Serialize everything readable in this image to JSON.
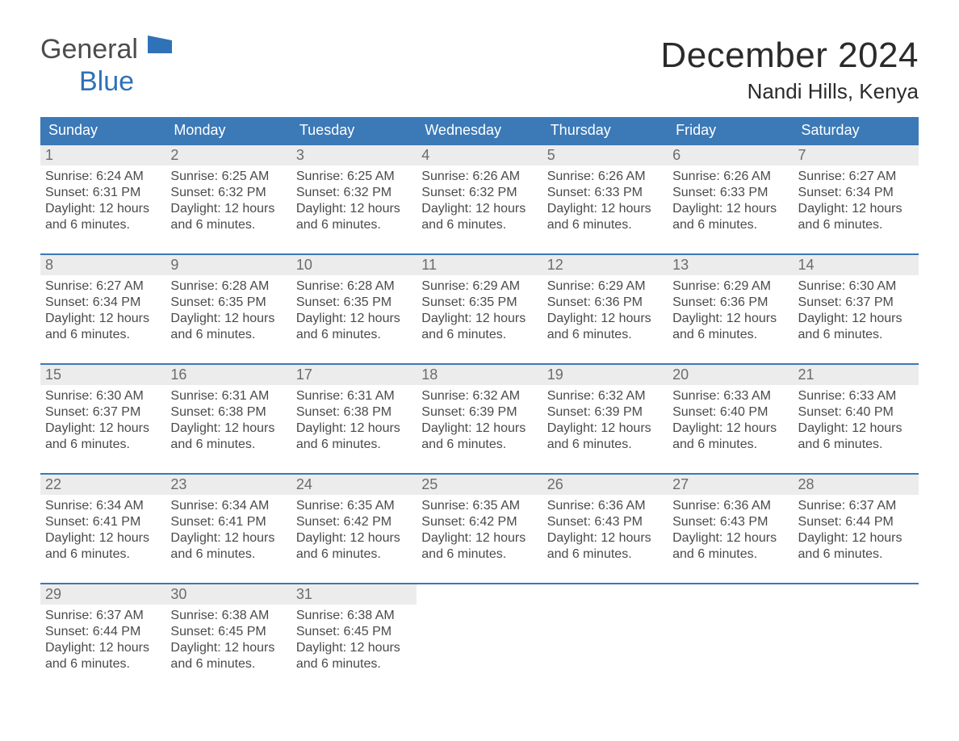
{
  "brand": {
    "word1": "General",
    "word2": "Blue"
  },
  "title": "December 2024",
  "location": "Nandi Hills, Kenya",
  "colors": {
    "header_bg": "#3b79b7",
    "header_text": "#ffffff",
    "daynum_bg": "#ececec",
    "daynum_text": "#6c6c6c",
    "body_text": "#4a4a4a",
    "rule": "#3b79b7",
    "logo_gray": "#4c4c4c",
    "logo_blue": "#2f72b8",
    "page_bg": "#ffffff"
  },
  "weekdays": [
    "Sunday",
    "Monday",
    "Tuesday",
    "Wednesday",
    "Thursday",
    "Friday",
    "Saturday"
  ],
  "weeks": [
    [
      {
        "n": "1",
        "sunrise": "Sunrise: 6:24 AM",
        "sunset": "Sunset: 6:31 PM",
        "d1": "Daylight: 12 hours",
        "d2": "and 6 minutes."
      },
      {
        "n": "2",
        "sunrise": "Sunrise: 6:25 AM",
        "sunset": "Sunset: 6:32 PM",
        "d1": "Daylight: 12 hours",
        "d2": "and 6 minutes."
      },
      {
        "n": "3",
        "sunrise": "Sunrise: 6:25 AM",
        "sunset": "Sunset: 6:32 PM",
        "d1": "Daylight: 12 hours",
        "d2": "and 6 minutes."
      },
      {
        "n": "4",
        "sunrise": "Sunrise: 6:26 AM",
        "sunset": "Sunset: 6:32 PM",
        "d1": "Daylight: 12 hours",
        "d2": "and 6 minutes."
      },
      {
        "n": "5",
        "sunrise": "Sunrise: 6:26 AM",
        "sunset": "Sunset: 6:33 PM",
        "d1": "Daylight: 12 hours",
        "d2": "and 6 minutes."
      },
      {
        "n": "6",
        "sunrise": "Sunrise: 6:26 AM",
        "sunset": "Sunset: 6:33 PM",
        "d1": "Daylight: 12 hours",
        "d2": "and 6 minutes."
      },
      {
        "n": "7",
        "sunrise": "Sunrise: 6:27 AM",
        "sunset": "Sunset: 6:34 PM",
        "d1": "Daylight: 12 hours",
        "d2": "and 6 minutes."
      }
    ],
    [
      {
        "n": "8",
        "sunrise": "Sunrise: 6:27 AM",
        "sunset": "Sunset: 6:34 PM",
        "d1": "Daylight: 12 hours",
        "d2": "and 6 minutes."
      },
      {
        "n": "9",
        "sunrise": "Sunrise: 6:28 AM",
        "sunset": "Sunset: 6:35 PM",
        "d1": "Daylight: 12 hours",
        "d2": "and 6 minutes."
      },
      {
        "n": "10",
        "sunrise": "Sunrise: 6:28 AM",
        "sunset": "Sunset: 6:35 PM",
        "d1": "Daylight: 12 hours",
        "d2": "and 6 minutes."
      },
      {
        "n": "11",
        "sunrise": "Sunrise: 6:29 AM",
        "sunset": "Sunset: 6:35 PM",
        "d1": "Daylight: 12 hours",
        "d2": "and 6 minutes."
      },
      {
        "n": "12",
        "sunrise": "Sunrise: 6:29 AM",
        "sunset": "Sunset: 6:36 PM",
        "d1": "Daylight: 12 hours",
        "d2": "and 6 minutes."
      },
      {
        "n": "13",
        "sunrise": "Sunrise: 6:29 AM",
        "sunset": "Sunset: 6:36 PM",
        "d1": "Daylight: 12 hours",
        "d2": "and 6 minutes."
      },
      {
        "n": "14",
        "sunrise": "Sunrise: 6:30 AM",
        "sunset": "Sunset: 6:37 PM",
        "d1": "Daylight: 12 hours",
        "d2": "and 6 minutes."
      }
    ],
    [
      {
        "n": "15",
        "sunrise": "Sunrise: 6:30 AM",
        "sunset": "Sunset: 6:37 PM",
        "d1": "Daylight: 12 hours",
        "d2": "and 6 minutes."
      },
      {
        "n": "16",
        "sunrise": "Sunrise: 6:31 AM",
        "sunset": "Sunset: 6:38 PM",
        "d1": "Daylight: 12 hours",
        "d2": "and 6 minutes."
      },
      {
        "n": "17",
        "sunrise": "Sunrise: 6:31 AM",
        "sunset": "Sunset: 6:38 PM",
        "d1": "Daylight: 12 hours",
        "d2": "and 6 minutes."
      },
      {
        "n": "18",
        "sunrise": "Sunrise: 6:32 AM",
        "sunset": "Sunset: 6:39 PM",
        "d1": "Daylight: 12 hours",
        "d2": "and 6 minutes."
      },
      {
        "n": "19",
        "sunrise": "Sunrise: 6:32 AM",
        "sunset": "Sunset: 6:39 PM",
        "d1": "Daylight: 12 hours",
        "d2": "and 6 minutes."
      },
      {
        "n": "20",
        "sunrise": "Sunrise: 6:33 AM",
        "sunset": "Sunset: 6:40 PM",
        "d1": "Daylight: 12 hours",
        "d2": "and 6 minutes."
      },
      {
        "n": "21",
        "sunrise": "Sunrise: 6:33 AM",
        "sunset": "Sunset: 6:40 PM",
        "d1": "Daylight: 12 hours",
        "d2": "and 6 minutes."
      }
    ],
    [
      {
        "n": "22",
        "sunrise": "Sunrise: 6:34 AM",
        "sunset": "Sunset: 6:41 PM",
        "d1": "Daylight: 12 hours",
        "d2": "and 6 minutes."
      },
      {
        "n": "23",
        "sunrise": "Sunrise: 6:34 AM",
        "sunset": "Sunset: 6:41 PM",
        "d1": "Daylight: 12 hours",
        "d2": "and 6 minutes."
      },
      {
        "n": "24",
        "sunrise": "Sunrise: 6:35 AM",
        "sunset": "Sunset: 6:42 PM",
        "d1": "Daylight: 12 hours",
        "d2": "and 6 minutes."
      },
      {
        "n": "25",
        "sunrise": "Sunrise: 6:35 AM",
        "sunset": "Sunset: 6:42 PM",
        "d1": "Daylight: 12 hours",
        "d2": "and 6 minutes."
      },
      {
        "n": "26",
        "sunrise": "Sunrise: 6:36 AM",
        "sunset": "Sunset: 6:43 PM",
        "d1": "Daylight: 12 hours",
        "d2": "and 6 minutes."
      },
      {
        "n": "27",
        "sunrise": "Sunrise: 6:36 AM",
        "sunset": "Sunset: 6:43 PM",
        "d1": "Daylight: 12 hours",
        "d2": "and 6 minutes."
      },
      {
        "n": "28",
        "sunrise": "Sunrise: 6:37 AM",
        "sunset": "Sunset: 6:44 PM",
        "d1": "Daylight: 12 hours",
        "d2": "and 6 minutes."
      }
    ],
    [
      {
        "n": "29",
        "sunrise": "Sunrise: 6:37 AM",
        "sunset": "Sunset: 6:44 PM",
        "d1": "Daylight: 12 hours",
        "d2": "and 6 minutes."
      },
      {
        "n": "30",
        "sunrise": "Sunrise: 6:38 AM",
        "sunset": "Sunset: 6:45 PM",
        "d1": "Daylight: 12 hours",
        "d2": "and 6 minutes."
      },
      {
        "n": "31",
        "sunrise": "Sunrise: 6:38 AM",
        "sunset": "Sunset: 6:45 PM",
        "d1": "Daylight: 12 hours",
        "d2": "and 6 minutes."
      },
      null,
      null,
      null,
      null
    ]
  ]
}
